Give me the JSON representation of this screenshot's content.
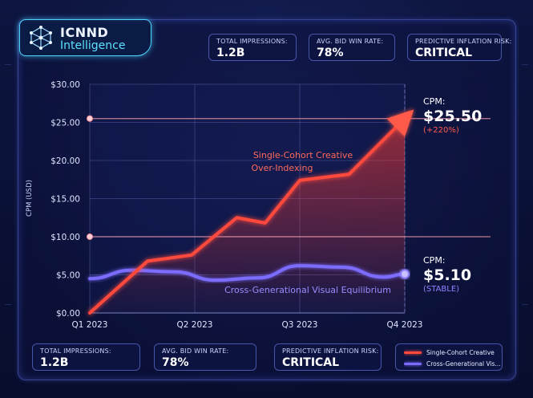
{
  "brand": {
    "line1": "ICNND",
    "line2": "Intelligence"
  },
  "kpis_top": [
    {
      "label": "TOTAL IMPRESSIONS:",
      "value": "1.2B"
    },
    {
      "label": "AVG. BID WIN RATE:",
      "value": "78%"
    },
    {
      "label": "PREDICTIVE INFLATION RISK:",
      "value": "CRITICAL"
    }
  ],
  "kpis_bottom": [
    {
      "label": "TOTAL IMPRESSIONS:",
      "value": "1.2B"
    },
    {
      "label": "AVG. BID WIN RATE:",
      "value": "78%"
    },
    {
      "label": "PREDICTIVE INFLATION RISK:",
      "value": "CRITICAL"
    }
  ],
  "legend": [
    {
      "name": "Single-Cohort Creative",
      "color": "#ff4a3d"
    },
    {
      "name": "Cross-Generational Vis...",
      "color": "#7b6cff"
    }
  ],
  "callouts": {
    "red": {
      "label": "CPM:",
      "value": "$25.50",
      "change": "(+220%)"
    },
    "blue": {
      "label": "CPM:",
      "value": "$5.10",
      "change": "(STABLE)"
    }
  },
  "chart_data": {
    "type": "line",
    "ylabel": "CPM (USD)",
    "xlabel": "",
    "ylim": [
      0,
      30
    ],
    "yticks": [
      "$0.00",
      "$5.00",
      "$10.00",
      "$15.00",
      "$20.00",
      "$25.00",
      "$30.00"
    ],
    "ytick_values": [
      0,
      5,
      10,
      15,
      20,
      25,
      30
    ],
    "xticks": [
      "Q1 2023",
      "Q2 2023",
      "Q3 2023",
      "Q4 2023"
    ],
    "xtick_values": [
      0,
      1,
      2,
      3
    ],
    "xlim": [
      0,
      3
    ],
    "grid": true,
    "reference_lines": [
      10,
      25.5
    ],
    "series": [
      {
        "name": "Single-Cohort Creative",
        "color": "#ff4a3d",
        "annotation": "Single-Cohort Creative Over-Indexing",
        "x": [
          0,
          0.55,
          0.97,
          1.4,
          1.67,
          2.0,
          2.47,
          3.0
        ],
        "y": [
          0,
          6.8,
          7.6,
          12.5,
          11.8,
          17.4,
          18.2,
          25.5
        ]
      },
      {
        "name": "Cross-Generational Visual Equilibrium",
        "color": "#7b6cff",
        "annotation": "Cross-Generational Visual Equilibrium",
        "x": [
          0,
          0.4,
          0.8,
          1.2,
          1.6,
          2.0,
          2.4,
          2.8,
          3.0
        ],
        "y": [
          4.5,
          5.6,
          5.4,
          4.3,
          4.6,
          6.2,
          6.0,
          4.7,
          5.1
        ]
      }
    ]
  }
}
